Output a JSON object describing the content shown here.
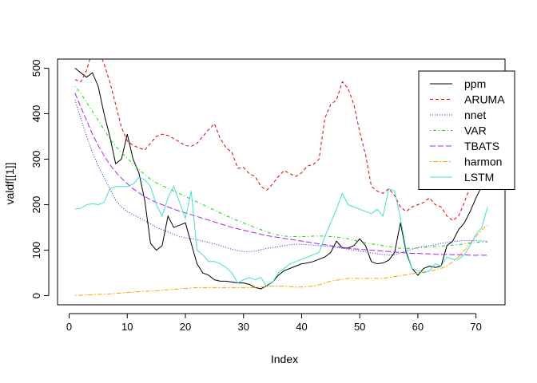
{
  "chart_data": {
    "type": "line",
    "title": "",
    "xlabel": "Index",
    "ylabel": "valdf[[1]]",
    "xlim": [
      1,
      72
    ],
    "ylim": [
      0,
      520
    ],
    "x_ticks": [
      "0",
      "10",
      "20",
      "30",
      "40",
      "50",
      "60",
      "70"
    ],
    "y_ticks": [
      "0",
      "100",
      "200",
      "300",
      "400",
      "500"
    ],
    "grid": false,
    "legend": {
      "position": "top-right",
      "entries": [
        {
          "name": "ppm",
          "color": "#000000",
          "dash": "solid"
        },
        {
          "name": "ARUMA",
          "color": "#DF0000",
          "dash": "dashed"
        },
        {
          "name": "nnet",
          "color": "#2020FF",
          "dash": "dotted"
        },
        {
          "name": "VAR",
          "color": "#00DD00",
          "dash": "dotdash"
        },
        {
          "name": "TBATS",
          "color": "#AA22EE",
          "dash": "longdash"
        },
        {
          "name": "harmon",
          "color": "#FFA500",
          "dash": "twodash"
        },
        {
          "name": "LSTM",
          "color": "#40E0D0",
          "dash": "solid"
        }
      ]
    },
    "series": [
      {
        "name": "ppm",
        "color": "#000000",
        "values": [
          500,
          490,
          480,
          490,
          460,
          400,
          350,
          290,
          300,
          355,
          300,
          270,
          210,
          115,
          100,
          110,
          175,
          150,
          155,
          160,
          115,
          70,
          50,
          45,
          35,
          32,
          32,
          30,
          28,
          28,
          25,
          18,
          15,
          22,
          30,
          45,
          55,
          60,
          65,
          70,
          72,
          75,
          80,
          85,
          95,
          120,
          105,
          105,
          110,
          125,
          110,
          75,
          70,
          72,
          78,
          95,
          160,
          95,
          60,
          45,
          60,
          65,
          62,
          65,
          110,
          120,
          145,
          160,
          185,
          215,
          240,
          260
        ]
      },
      {
        "name": "ARUMA",
        "color": "#DF0000",
        "values": [
          475,
          470,
          495,
          540,
          540,
          510,
          470,
          420,
          370,
          340,
          330,
          325,
          320,
          335,
          350,
          355,
          352,
          345,
          338,
          330,
          328,
          335,
          350,
          365,
          378,
          345,
          325,
          315,
          280,
          282,
          268,
          262,
          240,
          232,
          245,
          262,
          275,
          268,
          262,
          270,
          285,
          288,
          300,
          390,
          420,
          430,
          470,
          455,
          420,
          360,
          310,
          240,
          230,
          225,
          235,
          220,
          195,
          185,
          195,
          200,
          205,
          215,
          200,
          195,
          175,
          165,
          175,
          205,
          240,
          290,
          330,
          370
        ]
      },
      {
        "name": "nnet",
        "color": "#2020FF",
        "values": [
          430,
          390,
          350,
          315,
          285,
          260,
          235,
          210,
          195,
          185,
          178,
          172,
          165,
          158,
          150,
          145,
          140,
          135,
          130,
          127,
          125,
          123,
          120,
          117,
          114,
          110,
          106,
          102,
          99,
          97,
          97,
          98,
          101,
          104,
          106,
          108,
          110,
          112,
          113,
          113,
          112,
          111,
          110,
          109,
          108,
          106,
          104,
          102,
          100,
          98,
          96,
          94,
          92,
          90,
          89,
          90,
          94,
          98,
          102,
          106,
          108,
          110,
          112,
          115,
          117,
          119,
          120,
          121,
          121,
          121,
          120,
          120
        ]
      },
      {
        "name": "VAR",
        "color": "#00DD00",
        "values": [
          460,
          445,
          425,
          405,
          385,
          365,
          345,
          328,
          315,
          302,
          290,
          278,
          266,
          256,
          248,
          242,
          236,
          230,
          224,
          218,
          212,
          206,
          200,
          194,
          188,
          182,
          176,
          170,
          165,
          160,
          155,
          150,
          145,
          140,
          136,
          133,
          131,
          130,
          130,
          130,
          130,
          131,
          131,
          131,
          130,
          129,
          127,
          125,
          122,
          119,
          116,
          114,
          112,
          110,
          108,
          106,
          104,
          104,
          104,
          105,
          106,
          107,
          108,
          109,
          110,
          111,
          112,
          114,
          116,
          117,
          118,
          118
        ]
      },
      {
        "name": "TBATS",
        "color": "#AA22EE",
        "values": [
          445,
          415,
          385,
          355,
          330,
          308,
          288,
          272,
          258,
          246,
          235,
          226,
          218,
          211,
          205,
          200,
          195,
          190,
          186,
          182,
          178,
          174,
          170,
          166,
          162,
          158,
          154,
          150,
          147,
          144,
          141,
          138,
          135,
          132,
          130,
          128,
          126,
          124,
          122,
          120,
          118,
          116,
          114,
          112,
          110,
          108,
          106,
          104,
          103,
          102,
          101,
          100,
          99,
          98,
          97,
          96,
          95,
          94,
          93,
          93,
          92,
          92,
          91,
          91,
          91,
          90,
          90,
          90,
          89,
          89,
          89,
          89
        ]
      },
      {
        "name": "harmon",
        "color": "#FFA500",
        "values": [
          1,
          1,
          2,
          2,
          3,
          3,
          4,
          5,
          6,
          7,
          8,
          9,
          10,
          10,
          11,
          12,
          13,
          14,
          15,
          16,
          17,
          18,
          18,
          18,
          18,
          18,
          18,
          18,
          18,
          18,
          18,
          18,
          19,
          20,
          21,
          21,
          21,
          20,
          19,
          19,
          20,
          21,
          24,
          28,
          32,
          34,
          36,
          38,
          38,
          38,
          38,
          38,
          38,
          38,
          40,
          42,
          44,
          46,
          48,
          50,
          52,
          54,
          57,
          60,
          65,
          75,
          85,
          100,
          115,
          130,
          145,
          155
        ]
      },
      {
        "name": "LSTM",
        "color": "#40E0D0",
        "values": [
          190,
          192,
          200,
          202,
          200,
          205,
          235,
          240,
          240,
          240,
          245,
          260,
          255,
          240,
          200,
          175,
          215,
          240,
          205,
          170,
          230,
          100,
          90,
          75,
          75,
          70,
          62,
          50,
          28,
          35,
          40,
          35,
          40,
          20,
          30,
          50,
          60,
          70,
          75,
          80,
          85,
          90,
          95,
          130,
          160,
          190,
          225,
          200,
          195,
          190,
          185,
          180,
          190,
          175,
          235,
          230,
          170,
          100,
          60,
          55,
          50,
          55,
          70,
          65,
          85,
          80,
          80,
          90,
          110,
          135,
          150,
          195
        ]
      }
    ]
  }
}
